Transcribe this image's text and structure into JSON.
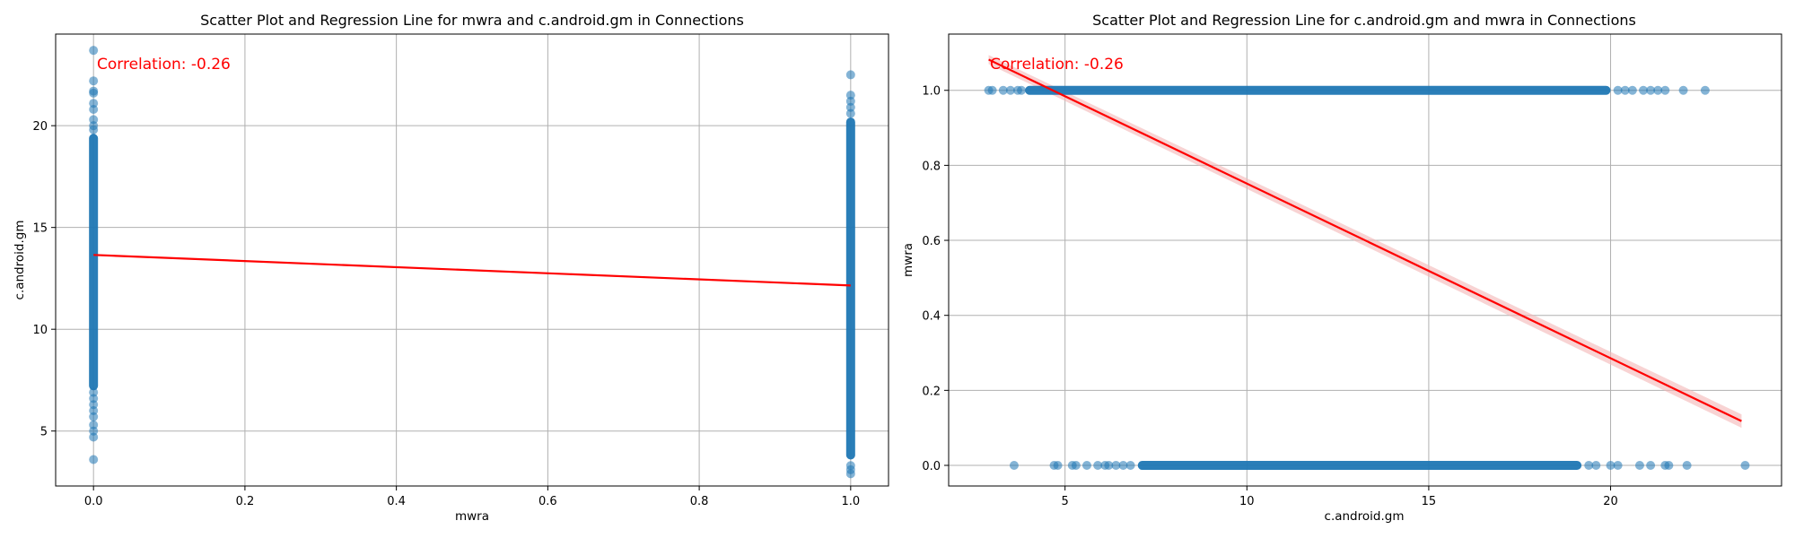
{
  "colors": {
    "points": "#1f77b4",
    "regression": "#ff0000",
    "ci_band": "#f4b6b6",
    "grid": "#b0b0b0",
    "annotation": "#ff0000"
  },
  "chart_data": [
    {
      "type": "scatter",
      "title": "Scatter Plot and Regression Line for mwra and c.android.gm in Connections",
      "xlabel": "mwra",
      "ylabel": "c.android.gm",
      "xlim": [
        -0.05,
        1.05
      ],
      "ylim": [
        2.3,
        24.5
      ],
      "grid": true,
      "xticks": [
        0.0,
        0.2,
        0.4,
        0.6,
        0.8,
        1.0
      ],
      "xtick_labels": [
        "0.0",
        "0.2",
        "0.4",
        "0.6",
        "0.8",
        "1.0"
      ],
      "yticks": [
        5,
        10,
        15,
        20
      ],
      "ytick_labels": [
        "5",
        "10",
        "15",
        "20"
      ],
      "annotation": "Correlation: -0.26",
      "series": [
        {
          "type": "scatter-strip",
          "points": [
            {
              "x": 0,
              "y_from": 7.0,
              "y_to": 19.6
            },
            {
              "x": 0,
              "values": [
                3.6,
                4.7,
                5.0,
                5.3,
                5.7,
                6.0,
                6.3,
                6.6,
                6.9,
                19.8,
                20.0,
                20.3,
                20.8,
                21.1,
                21.6,
                21.7,
                22.2,
                23.7
              ]
            },
            {
              "x": 1,
              "y_from": 3.6,
              "y_to": 20.4
            },
            {
              "x": 1,
              "values": [
                2.9,
                3.1,
                3.3,
                20.6,
                20.9,
                21.2,
                21.5,
                22.5
              ]
            }
          ]
        },
        {
          "type": "regression",
          "x": [
            0,
            1
          ],
          "y": [
            13.65,
            12.15
          ]
        }
      ]
    },
    {
      "type": "scatter",
      "title": "Scatter Plot and Regression Line for c.android.gm and mwra in Connections",
      "xlabel": "c.android.gm",
      "ylabel": "mwra",
      "xlim": [
        1.8,
        24.7
      ],
      "ylim": [
        -0.055,
        1.15
      ],
      "grid": true,
      "xticks": [
        5,
        10,
        15,
        20
      ],
      "xtick_labels": [
        "5",
        "10",
        "15",
        "20"
      ],
      "yticks": [
        0.0,
        0.2,
        0.4,
        0.6,
        0.8,
        1.0
      ],
      "ytick_labels": [
        "0.0",
        "0.2",
        "0.4",
        "0.6",
        "0.8",
        "1.0"
      ],
      "annotation": "Correlation: -0.26",
      "series": [
        {
          "type": "scatter-strip",
          "points": [
            {
              "y": 1,
              "x_from": 3.9,
              "x_to": 20.0
            },
            {
              "y": 1,
              "values": [
                2.9,
                3.0,
                3.3,
                3.5,
                3.7,
                3.8,
                20.2,
                20.4,
                20.6,
                20.9,
                21.1,
                21.3,
                21.5,
                22.0,
                22.6
              ]
            },
            {
              "y": 0,
              "x_from": 7.0,
              "x_to": 19.2
            },
            {
              "y": 0,
              "values": [
                3.6,
                4.7,
                4.8,
                5.2,
                5.3,
                5.6,
                5.9,
                6.1,
                6.2,
                6.4,
                6.6,
                6.8,
                19.4,
                19.6,
                20.0,
                20.2,
                20.8,
                21.1,
                21.5,
                21.6,
                22.1,
                23.7
              ]
            }
          ]
        },
        {
          "type": "regression",
          "x": [
            2.9,
            23.6
          ],
          "y": [
            1.082,
            0.118
          ],
          "ci_halfwidth": [
            0.012,
            0.018
          ]
        }
      ]
    }
  ]
}
